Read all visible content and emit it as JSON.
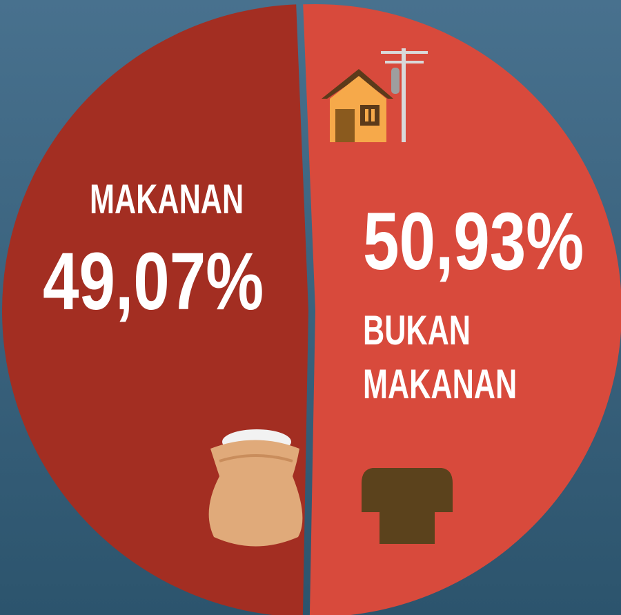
{
  "chart_data": {
    "type": "pie",
    "categories": [
      "MAKANAN",
      "BUKAN MAKANAN"
    ],
    "values": [
      49.07,
      50.93
    ],
    "value_labels": [
      "49,07%",
      "50,93%"
    ],
    "colors": [
      "#a32e22",
      "#d84a3c"
    ]
  }
}
